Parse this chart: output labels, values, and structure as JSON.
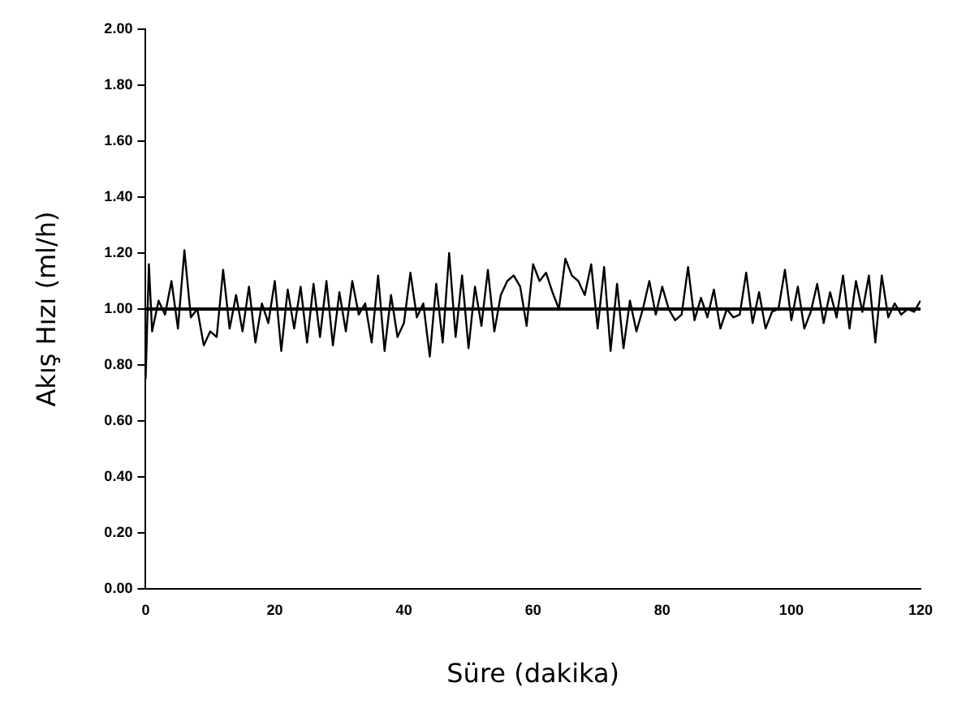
{
  "chart_data": {
    "type": "line",
    "xlabel": "Süre (dakika)",
    "ylabel": "Akış Hızı (ml/h)",
    "x": [
      0,
      0.5,
      1,
      2,
      3,
      4,
      5,
      6,
      7,
      8,
      9,
      10,
      11,
      12,
      13,
      14,
      15,
      16,
      17,
      18,
      19,
      20,
      21,
      22,
      23,
      24,
      25,
      26,
      27,
      28,
      29,
      30,
      31,
      32,
      33,
      34,
      35,
      36,
      37,
      38,
      39,
      40,
      41,
      42,
      43,
      44,
      45,
      46,
      47,
      48,
      49,
      50,
      51,
      52,
      53,
      54,
      55,
      56,
      57,
      58,
      59,
      60,
      61,
      62,
      63,
      64,
      65,
      66,
      67,
      68,
      69,
      70,
      71,
      72,
      73,
      74,
      75,
      76,
      77,
      78,
      79,
      80,
      81,
      82,
      83,
      84,
      85,
      86,
      87,
      88,
      89,
      90,
      91,
      92,
      93,
      94,
      95,
      96,
      97,
      98,
      99,
      100,
      101,
      102,
      103,
      104,
      105,
      106,
      107,
      108,
      109,
      110,
      111,
      112,
      113,
      114,
      115,
      116,
      117,
      118,
      119,
      120
    ],
    "series": [
      {
        "color": "#000000",
        "values": [
          0.75,
          1.16,
          0.92,
          1.03,
          0.98,
          1.1,
          0.93,
          1.21,
          0.97,
          1.0,
          0.87,
          0.92,
          0.9,
          1.14,
          0.93,
          1.05,
          0.92,
          1.08,
          0.88,
          1.02,
          0.95,
          1.1,
          0.85,
          1.07,
          0.93,
          1.08,
          0.88,
          1.09,
          0.9,
          1.1,
          0.87,
          1.06,
          0.92,
          1.1,
          0.98,
          1.02,
          0.88,
          1.12,
          0.85,
          1.05,
          0.9,
          0.95,
          1.13,
          0.97,
          1.02,
          0.83,
          1.09,
          0.88,
          1.2,
          0.9,
          1.12,
          0.86,
          1.08,
          0.94,
          1.14,
          0.92,
          1.05,
          1.1,
          1.12,
          1.08,
          0.94,
          1.16,
          1.1,
          1.13,
          1.06,
          1.0,
          1.18,
          1.12,
          1.1,
          1.05,
          1.16,
          0.93,
          1.15,
          0.85,
          1.09,
          0.86,
          1.03,
          0.92,
          1.0,
          1.1,
          0.98,
          1.08,
          1.0,
          0.96,
          0.98,
          1.15,
          0.96,
          1.04,
          0.97,
          1.07,
          0.93,
          1.0,
          0.97,
          0.98,
          1.13,
          0.95,
          1.06,
          0.93,
          0.99,
          1.0,
          1.14,
          0.96,
          1.08,
          0.93,
          0.99,
          1.09,
          0.95,
          1.06,
          0.97,
          1.12,
          0.93,
          1.1,
          0.99,
          1.12,
          0.88,
          1.12,
          0.97,
          1.02,
          0.98,
          1.0,
          0.99,
          1.03
        ]
      }
    ],
    "ref_lines": [
      {
        "axis": "y",
        "value": 1.0,
        "color": "#000000"
      }
    ],
    "xlim": [
      0,
      120
    ],
    "xticks": [
      0,
      20,
      40,
      60,
      80,
      100,
      120
    ],
    "ylim": [
      0,
      2
    ],
    "yticks": [
      {
        "value": 0,
        "label": "0.00"
      },
      {
        "value": 0.2,
        "label": "0.20"
      },
      {
        "value": 0.4,
        "label": "0.40"
      },
      {
        "value": 0.6,
        "label": "0.60"
      },
      {
        "value": 0.8,
        "label": "0.80"
      },
      {
        "value": 1,
        "label": "1.00"
      },
      {
        "value": 1.2,
        "label": "1.20"
      },
      {
        "value": 1.4,
        "label": "1.40"
      },
      {
        "value": 1.6,
        "label": "1.60"
      },
      {
        "value": 1.8,
        "label": "1.80"
      },
      {
        "value": 2,
        "label": "2.00"
      }
    ],
    "grid": false,
    "legend": false,
    "marker": "none",
    "line_style": "solid"
  }
}
